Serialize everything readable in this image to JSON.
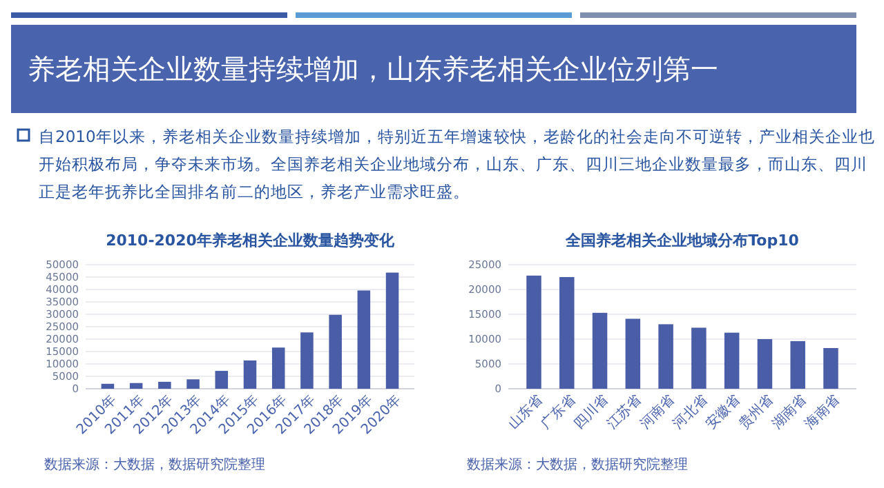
{
  "chart_data": [
    {
      "type": "other",
      "title": "养老相关企业数量持续增加，山东养老相关企业位列第一",
      "annotations": [
        "自2010年以来，养老相关企业数量持续增加，特别近五年增速较快，老龄化的社会走向不可逆转，产业相关企业也开始积极布局，争夺未来市场。全国养老相关企业地域分布，山东、广东、四川三地企业数量最多，而山东、四川正是老年抚养比全国排名前二的地区，养老产业需求旺盛。"
      ]
    },
    {
      "type": "bar",
      "title": "2010-2020年养老相关企业数量趋势变化",
      "categories": [
        "2010年",
        "2011年",
        "2012年",
        "2013年",
        "2014年",
        "2015年",
        "2016年",
        "2017年",
        "2018年",
        "2019年",
        "2020年"
      ],
      "values": [
        2000,
        2300,
        2800,
        3800,
        7200,
        11400,
        16600,
        22700,
        29800,
        39600,
        46800
      ],
      "color": "#4a5ea8",
      "ylim": [
        0,
        50000
      ],
      "yticks": [
        0,
        5000,
        10000,
        15000,
        20000,
        25000,
        30000,
        35000,
        40000,
        45000,
        50000
      ],
      "grid": "y",
      "annotations": [
        "数据来源：大数据，数据研究院整理"
      ]
    },
    {
      "type": "bar",
      "title": "全国养老相关企业地域分布Top10",
      "categories": [
        "山东省",
        "广东省",
        "四川省",
        "江苏省",
        "河南省",
        "河北省",
        "安徽省",
        "贵州省",
        "湖南省",
        "海南省"
      ],
      "values": [
        22800,
        22500,
        15300,
        14100,
        13000,
        12300,
        11300,
        10000,
        9600,
        8200
      ],
      "color": "#4a5ea8",
      "ylim": [
        0,
        25000
      ],
      "yticks": [
        0,
        5000,
        10000,
        15000,
        20000,
        25000
      ],
      "grid": "y",
      "annotations": [
        "数据来源：大数据，数据研究院整理"
      ]
    }
  ]
}
